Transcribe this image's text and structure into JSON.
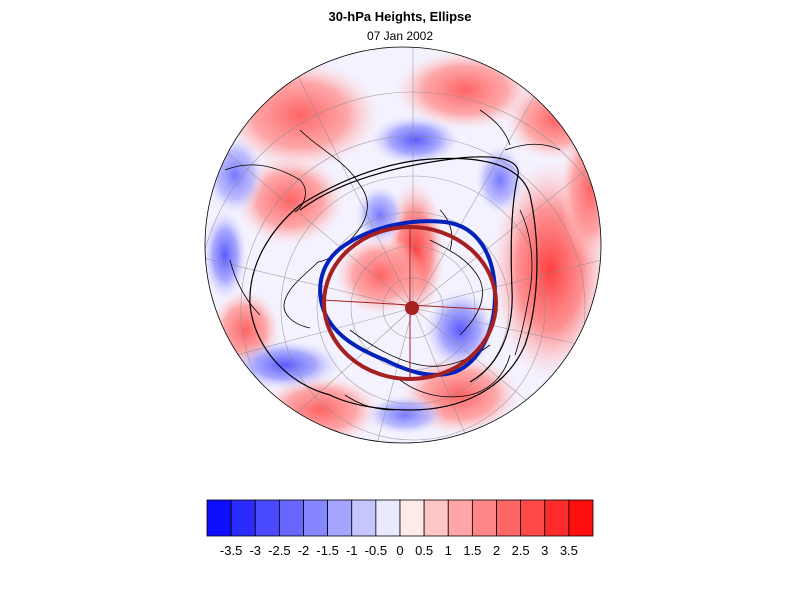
{
  "header": {
    "title": "30-hPa Heights, Ellipse",
    "subtitle": "07 Jan 2002"
  },
  "colorbar": {
    "tick_labels": [
      "-3.5",
      "-3",
      "-2.5",
      "-2",
      "-1.5",
      "-1",
      "-0.5",
      "0",
      "0.5",
      "1",
      "1.5",
      "2",
      "2.5",
      "3",
      "3.5"
    ],
    "min": -4,
    "max": 4,
    "levels": 16,
    "color_negative": "#0000ff",
    "color_positive": "#ff0000"
  },
  "map": {
    "projection": "polar stereographic, north pole",
    "ellipse_observed_color": "#0022bb",
    "ellipse_fit_color": "#a52020",
    "contour_color": "#000000"
  }
}
